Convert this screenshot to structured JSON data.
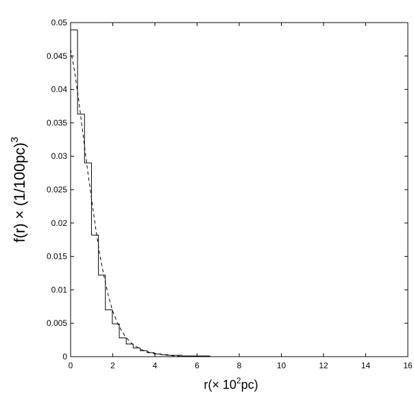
{
  "chart_data": {
    "type": "line",
    "title": "",
    "xlabel": {
      "main": "r(× 10",
      "sup": "2",
      "tail": "pc)"
    },
    "ylabel": {
      "main": "f(r) × (1/100pc)",
      "sup": "3"
    },
    "xlim": [
      0,
      16
    ],
    "ylim": [
      0,
      0.05
    ],
    "x_ticks": [
      "0",
      "2",
      "4",
      "6",
      "8",
      "10",
      "12",
      "14",
      "16"
    ],
    "y_ticks": [
      "0",
      "0.005",
      "0.01",
      "0.015",
      "0.02",
      "0.025",
      "0.03",
      "0.035",
      "0.04",
      "0.045",
      "0.05"
    ],
    "grid": false,
    "legend": "none",
    "series": [
      {
        "style": "solid-step",
        "bin_width": 0.33,
        "bin_start": 0,
        "values": [
          0.0489,
          0.0363,
          0.029,
          0.0182,
          0.0122,
          0.007,
          0.0049,
          0.0028,
          0.0019,
          0.0013,
          0.0009,
          0.0006,
          0.0004,
          0.0003,
          0.0002,
          0.0002,
          0.0001,
          0.0001,
          0.0001,
          0.0001,
          0.0,
          0.0,
          0.0,
          0.0,
          0.0
        ]
      },
      {
        "style": "dashed",
        "x": [
          0,
          0.2,
          0.4,
          0.6,
          0.8,
          1.0,
          1.2,
          1.4,
          1.6,
          1.8,
          2.0,
          2.2,
          2.4,
          2.6,
          2.8,
          3.0,
          3.4,
          3.8,
          4.2,
          4.6,
          5.0,
          5.5,
          6.0,
          7.0,
          8.0
        ],
        "y": [
          0.046,
          0.0425,
          0.038,
          0.033,
          0.028,
          0.0235,
          0.019,
          0.015,
          0.0118,
          0.009,
          0.0068,
          0.0052,
          0.004,
          0.003,
          0.0023,
          0.0017,
          0.001,
          0.0006,
          0.0004,
          0.0002,
          0.0001,
          5e-05,
          2e-05,
          0.0,
          0.0
        ]
      }
    ]
  }
}
